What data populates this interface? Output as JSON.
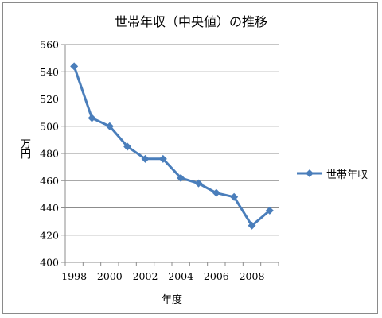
{
  "chart_data": {
    "type": "line",
    "title": "世帯年収（中央値）の推移",
    "xlabel": "年度",
    "ylabel": "万円",
    "ylim": [
      400,
      560
    ],
    "y_ticks": [
      400,
      420,
      440,
      460,
      480,
      500,
      520,
      540,
      560
    ],
    "x_ticks": [
      1998,
      2000,
      2002,
      2004,
      2006,
      2008
    ],
    "xlim": [
      1997.5,
      2009.5
    ],
    "grid": "horizontal",
    "legend_position": "right",
    "series": [
      {
        "name": "世帯年収",
        "color": "#4a7ebb",
        "marker": "diamond",
        "x": [
          1998,
          1999,
          2000,
          2001,
          2002,
          2003,
          2004,
          2005,
          2006,
          2007,
          2008,
          2009
        ],
        "values": [
          544,
          506,
          500,
          485,
          476,
          476,
          462,
          458,
          451,
          448,
          427,
          438
        ]
      }
    ]
  }
}
